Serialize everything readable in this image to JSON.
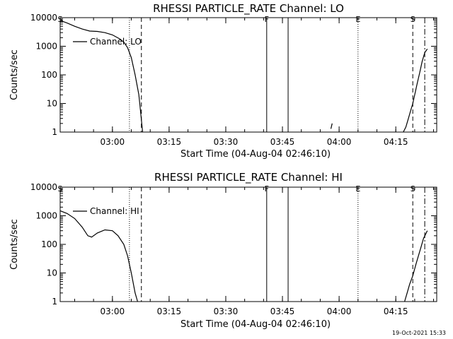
{
  "footer_date": "19-Oct-2021 15:33",
  "chart_data": [
    {
      "type": "line",
      "title": "RHESSI PARTICLE_RATE Channel: LO",
      "xlabel": "Start Time (04-Aug-04 02:46:10)",
      "ylabel": "Counts/sec",
      "yscale": "log",
      "ylim": [
        1,
        10000
      ],
      "xlim": [
        "02:46:10",
        "04:25:50"
      ],
      "x_ticks": [
        "03:00",
        "03:15",
        "03:30",
        "03:45",
        "04:00",
        "04:15"
      ],
      "y_ticks": [
        "1",
        "10",
        "100",
        "1000",
        "10000"
      ],
      "legend": "Channel: LO",
      "flags": [
        {
          "label": "S",
          "time": "02:46:10"
        },
        {
          "label": "F",
          "time": "03:40:50"
        },
        {
          "label": "E",
          "time": "04:05:00"
        },
        {
          "label": "S",
          "time": "04:19:30"
        }
      ],
      "vlines": [
        {
          "time": "03:04:30",
          "style": "dotted"
        },
        {
          "time": "03:07:40",
          "style": "dashed"
        },
        {
          "time": "03:40:50",
          "style": "solid"
        },
        {
          "time": "03:46:30",
          "style": "solid"
        },
        {
          "time": "04:05:00",
          "style": "dotted"
        },
        {
          "time": "04:19:30",
          "style": "dashed"
        },
        {
          "time": "04:22:40",
          "style": "dashdot"
        }
      ],
      "segments": [
        [
          [
            "02:46:10",
            8000
          ],
          [
            "02:48:00",
            6500
          ],
          [
            "02:50:00",
            5000
          ],
          [
            "02:52:00",
            4000
          ],
          [
            "02:54:00",
            3400
          ],
          [
            "02:56:00",
            3300
          ],
          [
            "02:58:00",
            3000
          ],
          [
            "03:00:00",
            2500
          ],
          [
            "03:02:00",
            1800
          ],
          [
            "03:03:00",
            1400
          ],
          [
            "03:04:00",
            900
          ],
          [
            "03:05:00",
            400
          ],
          [
            "03:06:00",
            100
          ],
          [
            "03:07:00",
            20
          ],
          [
            "03:08:00",
            1
          ]
        ],
        [
          [
            "03:57:50",
            1.3
          ],
          [
            "03:58:10",
            2
          ]
        ],
        [
          [
            "04:17:00",
            1
          ],
          [
            "04:17:40",
            1.5
          ],
          [
            "04:18:20",
            3
          ],
          [
            "04:19:00",
            6
          ],
          [
            "04:19:30",
            10
          ],
          [
            "04:20:00",
            20
          ],
          [
            "04:20:40",
            50
          ],
          [
            "04:21:20",
            120
          ],
          [
            "04:22:00",
            300
          ],
          [
            "04:22:40",
            600
          ],
          [
            "04:23:20",
            800
          ]
        ]
      ]
    },
    {
      "type": "line",
      "title": "RHESSI PARTICLE_RATE Channel: HI",
      "xlabel": "Start Time (04-Aug-04 02:46:10)",
      "ylabel": "Counts/sec",
      "yscale": "log",
      "ylim": [
        1,
        10000
      ],
      "xlim": [
        "02:46:10",
        "04:25:50"
      ],
      "x_ticks": [
        "03:00",
        "03:15",
        "03:30",
        "03:45",
        "04:00",
        "04:15"
      ],
      "y_ticks": [
        "1",
        "10",
        "100",
        "1000",
        "10000"
      ],
      "legend": "Channel: HI",
      "flags": [
        {
          "label": "S",
          "time": "02:46:10"
        },
        {
          "label": "F",
          "time": "03:40:50"
        },
        {
          "label": "E",
          "time": "04:05:00"
        },
        {
          "label": "S",
          "time": "04:19:30"
        }
      ],
      "vlines": [
        {
          "time": "03:04:30",
          "style": "dotted"
        },
        {
          "time": "03:07:40",
          "style": "dashed"
        },
        {
          "time": "03:40:50",
          "style": "solid"
        },
        {
          "time": "03:46:30",
          "style": "solid"
        },
        {
          "time": "04:05:00",
          "style": "dotted"
        },
        {
          "time": "04:19:30",
          "style": "dashed"
        },
        {
          "time": "04:22:40",
          "style": "dashdot"
        }
      ],
      "segments": [
        [
          [
            "02:46:10",
            1500
          ],
          [
            "02:48:00",
            1200
          ],
          [
            "02:50:00",
            800
          ],
          [
            "02:52:00",
            400
          ],
          [
            "02:53:30",
            200
          ],
          [
            "02:54:30",
            180
          ],
          [
            "02:56:00",
            250
          ],
          [
            "02:58:00",
            320
          ],
          [
            "03:00:00",
            300
          ],
          [
            "03:01:30",
            200
          ],
          [
            "03:03:00",
            100
          ],
          [
            "03:04:00",
            40
          ],
          [
            "03:05:00",
            10
          ],
          [
            "03:06:00",
            2
          ],
          [
            "03:06:40",
            1
          ]
        ],
        [
          [
            "04:17:20",
            1
          ],
          [
            "04:18:00",
            2
          ],
          [
            "04:18:40",
            4
          ],
          [
            "04:19:30",
            8
          ],
          [
            "04:20:20",
            20
          ],
          [
            "04:21:00",
            40
          ],
          [
            "04:21:40",
            80
          ],
          [
            "04:22:20",
            160
          ],
          [
            "04:23:20",
            300
          ]
        ]
      ]
    }
  ]
}
